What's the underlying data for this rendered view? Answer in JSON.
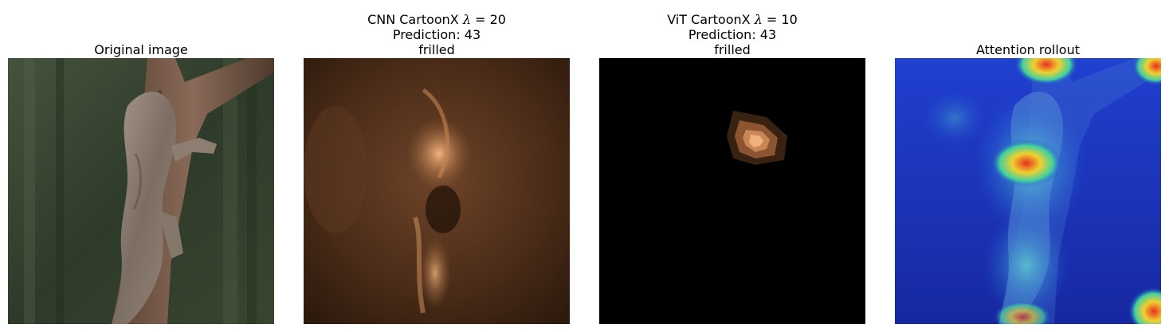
{
  "panels": [
    {
      "id": "original",
      "title_lines": [
        "Original image"
      ],
      "image": "photograph of a frilled lizard clinging to a tree trunk against a dark green background"
    },
    {
      "id": "cnn-cartoonx",
      "title_line1": {
        "prefix": "CNN CartoonX ",
        "symbol": "λ",
        "suffix": " = 20"
      },
      "title_lines": [
        "Prediction: 43",
        "frilled"
      ],
      "image": "copper-toned CartoonX explanation map"
    },
    {
      "id": "vit-cartoonx",
      "title_line1": {
        "prefix": "ViT CartoonX ",
        "symbol": "λ",
        "suffix": " = 10"
      },
      "title_lines": [
        "Prediction: 43",
        "frilled"
      ],
      "image": "black map with a small copper blob near top center"
    },
    {
      "id": "attention-rollout",
      "title_lines": [
        "Attention rollout"
      ],
      "image": "jet colormap attention overlay on the lizard photo"
    }
  ],
  "colors": {
    "copper_dark": "#3a2212",
    "copper_mid": "#8a5530",
    "copper_light": "#f0b07c",
    "jet_blue": "#1030c0",
    "jet_red": "#e03020"
  }
}
